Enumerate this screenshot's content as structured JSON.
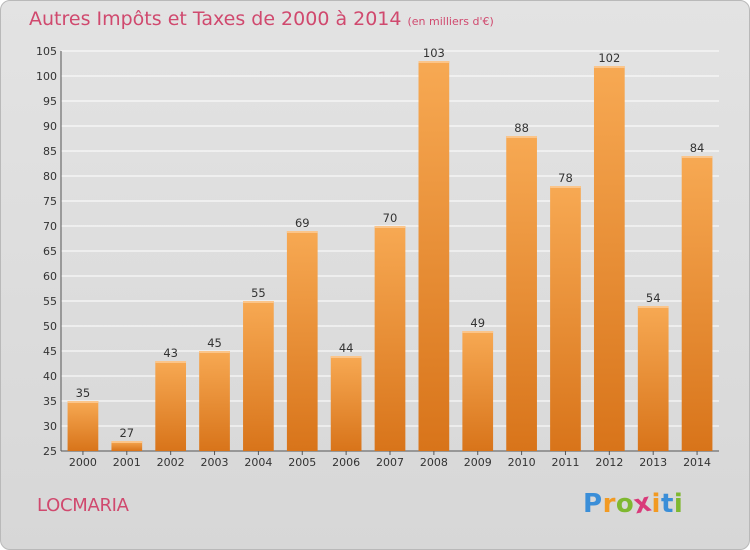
{
  "title": "Autres Impôts et Taxes de 2000 à 2014",
  "subtitle": "(en milliers d'€)",
  "commune": "LOCMARIA",
  "logo": {
    "letters": [
      "P",
      "r",
      "o",
      "x",
      "i",
      "t",
      "i"
    ],
    "colors": [
      "#3a8ed8",
      "#f29a22",
      "#7fb830",
      "#d93a7a",
      "#f29a22",
      "#3a8ed8",
      "#7fb830"
    ]
  },
  "colors": {
    "title": "#d0496e",
    "bar_light": "#f7a953",
    "bar_dark": "#d8741a",
    "grid": "#ffffff"
  },
  "chart_data": {
    "type": "bar",
    "title": "Autres Impôts et Taxes de 2000 à 2014",
    "subtitle": "(en milliers d'€)",
    "categories": [
      "2000",
      "2001",
      "2002",
      "2003",
      "2004",
      "2005",
      "2006",
      "2007",
      "2008",
      "2009",
      "2010",
      "2011",
      "2012",
      "2013",
      "2014"
    ],
    "values": [
      35,
      27,
      43,
      45,
      55,
      69,
      44,
      70,
      103,
      49,
      88,
      78,
      102,
      54,
      84
    ],
    "ylim": [
      25,
      105
    ],
    "yticks": [
      25,
      30,
      35,
      40,
      45,
      50,
      55,
      60,
      65,
      70,
      75,
      80,
      85,
      90,
      95,
      100,
      105
    ],
    "grid": true,
    "data_labels": true
  }
}
